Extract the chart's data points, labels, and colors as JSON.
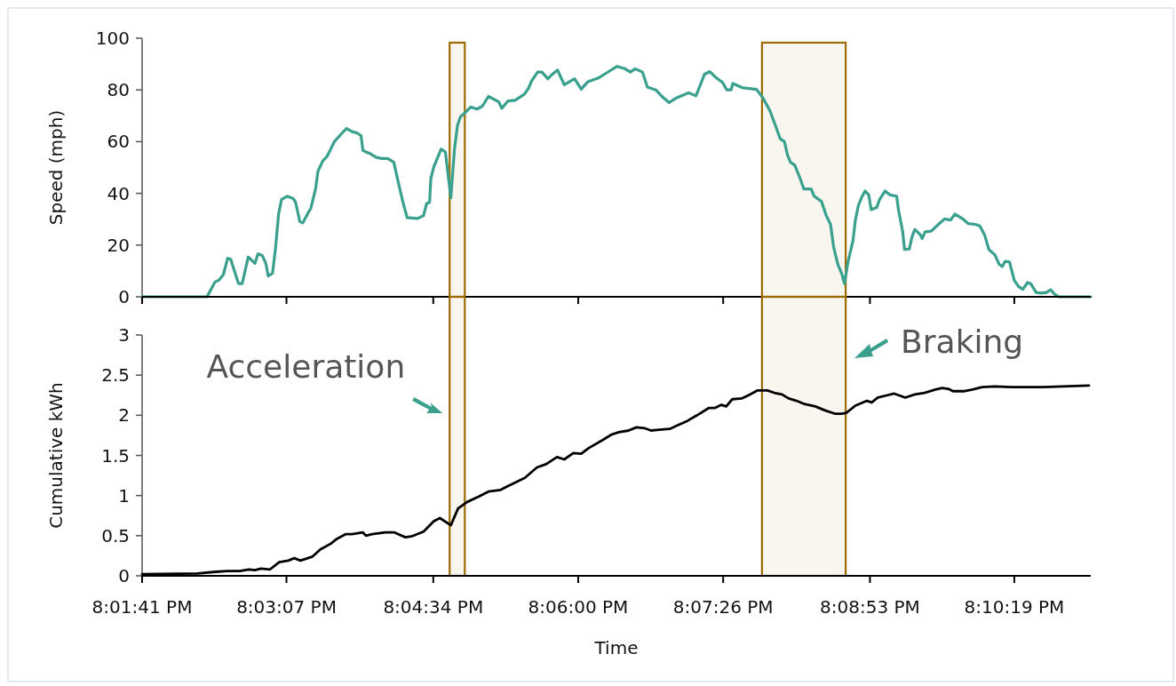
{
  "chart_data": [
    {
      "type": "line",
      "ylabel": "Speed (mph)",
      "xlim": [
        20.0281,
        20.1845
      ],
      "xticks": [
        {
          "value": 20.0281,
          "label": null
        },
        {
          "value": 20.0519,
          "label": null
        },
        {
          "value": 20.0761,
          "label": null
        },
        {
          "value": 20.1,
          "label": null
        },
        {
          "value": 20.1239,
          "label": null
        },
        {
          "value": 20.1481,
          "label": null
        },
        {
          "value": 20.1719,
          "label": null
        }
      ],
      "ylim": [
        0,
        100
      ],
      "yticks": [
        0,
        20,
        40,
        60,
        80,
        100
      ],
      "tick_labels": "y",
      "grid": false,
      "marker": "none",
      "line_style": "solid",
      "x": [
        20.0281,
        20.0388,
        20.0401,
        20.0408,
        20.0415,
        20.0422,
        20.0427,
        20.044,
        20.0446,
        20.0456,
        20.0467,
        20.0472,
        20.0479,
        20.0485,
        20.0489,
        20.0496,
        20.0501,
        20.0506,
        20.0511,
        20.052,
        20.053,
        20.0534,
        20.0541,
        20.0546,
        20.0555,
        20.0559,
        20.0567,
        20.0571,
        20.0579,
        20.0586,
        20.0598,
        20.0611,
        20.0618,
        20.0628,
        20.0635,
        20.0642,
        20.0645,
        20.0652,
        20.0657,
        20.0667,
        20.0676,
        20.0686,
        20.0696,
        20.0703,
        20.0711,
        20.0718,
        20.0735,
        20.0745,
        20.075,
        20.0755,
        20.0757,
        20.0762,
        20.0774,
        20.0781,
        20.079,
        20.0796,
        20.0801,
        20.0806,
        20.0813,
        20.0823,
        20.0833,
        20.0842,
        20.0852,
        20.0869,
        20.0874,
        20.0884,
        20.0896,
        20.0911,
        20.0918,
        20.0923,
        20.0933,
        20.094,
        20.095,
        20.0957,
        20.0966,
        20.0977,
        20.0994,
        20.1005,
        20.1016,
        20.1033,
        20.1047,
        20.1064,
        20.1077,
        20.1086,
        20.1094,
        20.1106,
        20.1114,
        20.1128,
        20.1138,
        20.115,
        20.1162,
        20.1182,
        20.1194,
        20.1201,
        20.1208,
        20.1217,
        20.1228,
        20.1238,
        20.1245,
        20.1252,
        20.1255,
        20.127,
        20.1294,
        20.1304,
        20.1316,
        20.1326,
        20.1333,
        20.134,
        20.1345,
        20.135,
        20.1357,
        20.1365,
        20.1372,
        20.1384,
        20.1389,
        20.1401,
        20.1409,
        20.1416,
        20.1421,
        20.1428,
        20.1435,
        20.1439,
        20.1445,
        20.1453,
        20.1457,
        20.1462,
        20.1467,
        20.1473,
        20.1479,
        20.1483,
        20.1492,
        20.1497,
        20.1506,
        20.1514,
        20.1525,
        20.1528,
        20.1535,
        20.1538,
        20.1546,
        20.155,
        20.1555,
        20.1564,
        20.1567,
        20.1572,
        20.1582,
        20.1594,
        20.1604,
        20.1614,
        20.1621,
        20.1633,
        20.1643,
        20.1655,
        20.1662,
        20.167,
        20.1677,
        20.1687,
        20.1694,
        20.1699,
        20.1704,
        20.1711,
        20.1719,
        20.1726,
        20.1733,
        20.1741,
        20.1746,
        20.1755,
        20.1763,
        20.1772,
        20.1779,
        20.1785,
        20.1792,
        20.1845
      ],
      "series": [
        {
          "color": "#3aa08e",
          "values": [
            0,
            0,
            5.7,
            6.5,
            8.6,
            14.9,
            14.5,
            5.1,
            5.1,
            15.4,
            12.9,
            16.6,
            16,
            12.9,
            8,
            9.1,
            18.9,
            32,
            37.7,
            38.9,
            38,
            36.6,
            29.1,
            28.6,
            32.6,
            34.1,
            41.7,
            48.6,
            52.6,
            54.3,
            60,
            63.4,
            65.1,
            63.8,
            63.4,
            62.3,
            56.6,
            55.8,
            55.4,
            53.9,
            53.5,
            53.5,
            52,
            44.6,
            36.6,
            30.6,
            30.3,
            31.4,
            36,
            36.6,
            45.7,
            50.3,
            57.1,
            56,
            38.3,
            57.1,
            66.3,
            69.7,
            71.1,
            73.4,
            72.6,
            73.7,
            77.5,
            75.4,
            72.9,
            75.7,
            76,
            78.3,
            80.6,
            83.4,
            86.9,
            86.9,
            84.3,
            86,
            87.7,
            82,
            84.3,
            80.3,
            83.2,
            84.6,
            86.6,
            89.1,
            88.2,
            86.9,
            88.2,
            86.9,
            81.1,
            80,
            77.5,
            75.1,
            76.9,
            78.9,
            77.7,
            81.7,
            86,
            87.1,
            84.6,
            82.9,
            80,
            80,
            82.5,
            80.9,
            80.2,
            77.1,
            72,
            65.7,
            61.1,
            60,
            54.9,
            52,
            50.9,
            46.3,
            41.7,
            41.7,
            38.9,
            36.9,
            31.4,
            28,
            19.4,
            12.6,
            8.6,
            5.1,
            13.7,
            21.7,
            29.7,
            35.4,
            38.3,
            40.9,
            39.4,
            33.7,
            34.5,
            37.7,
            40.9,
            39.4,
            38.9,
            33.7,
            25.1,
            18.3,
            18.5,
            22.9,
            26.1,
            24,
            22.5,
            25.1,
            25.4,
            28,
            30.1,
            29.7,
            32,
            30.3,
            28.3,
            28,
            27.4,
            24,
            18.3,
            16.2,
            12.6,
            11.7,
            13.7,
            13.5,
            6.3,
            4,
            2.9,
            5.5,
            5.1,
            1.7,
            1.4,
            1.7,
            2.7,
            1.1,
            0,
            0
          ]
        }
      ],
      "bands": [
        {
          "axis": "x",
          "from": 20.0788,
          "to": 20.0813,
          "color": "#9c6b00"
        },
        {
          "axis": "x",
          "from": 20.1303,
          "to": 20.1441,
          "color": "#9c6b00"
        }
      ]
    },
    {
      "type": "line",
      "xlabel": "Time",
      "ylabel": "Cumulative kWh",
      "xlim": [
        20.0281,
        20.1845
      ],
      "xticks": [
        {
          "value": 20.0281,
          "label": "8:01:41 PM"
        },
        {
          "value": 20.0519,
          "label": "8:03:07 PM"
        },
        {
          "value": 20.0761,
          "label": "8:04:34 PM"
        },
        {
          "value": 20.1,
          "label": "8:06:00 PM"
        },
        {
          "value": 20.1239,
          "label": "8:07:26 PM"
        },
        {
          "value": 20.1481,
          "label": "8:08:53 PM"
        },
        {
          "value": 20.1719,
          "label": "8:10:19 PM"
        }
      ],
      "ylim": [
        0,
        3
      ],
      "yticks": [
        0,
        0.5,
        1,
        1.5,
        2,
        2.5,
        3
      ],
      "grid": false,
      "marker": "none",
      "line_style": "solid",
      "x": [
        20.0281,
        20.0372,
        20.0402,
        20.0422,
        20.0442,
        20.0457,
        20.0467,
        20.0477,
        20.0492,
        20.0507,
        20.0522,
        20.0532,
        20.0542,
        20.0562,
        20.0575,
        20.0592,
        20.0602,
        20.0617,
        20.0627,
        20.0645,
        20.065,
        20.066,
        20.0682,
        20.0697,
        20.0715,
        20.0725,
        20.0745,
        20.0762,
        20.0772,
        20.079,
        20.0802,
        20.0817,
        20.0837,
        20.0852,
        20.0872,
        20.0882,
        20.0912,
        20.0932,
        20.0947,
        20.0965,
        20.0977,
        20.0992,
        20.1005,
        20.1017,
        20.1042,
        20.1055,
        20.1067,
        20.1083,
        20.1096,
        20.1109,
        20.112,
        20.1133,
        20.1151,
        20.1165,
        20.118,
        20.1196,
        20.1215,
        20.1225,
        20.1236,
        20.1244,
        20.1254,
        20.127,
        20.1281,
        20.1296,
        20.1312,
        20.1323,
        20.1336,
        20.1347,
        20.136,
        20.1373,
        20.1391,
        20.1407,
        20.1423,
        20.1434,
        20.1442,
        20.1457,
        20.1476,
        20.1484,
        20.1494,
        20.151,
        20.1521,
        20.1539,
        20.1555,
        20.1571,
        20.1589,
        20.16,
        20.161,
        20.1618,
        20.1637,
        20.165,
        20.1666,
        20.1687,
        20.1713,
        20.1766,
        20.1842
      ],
      "series": [
        {
          "color": "#000000",
          "values": [
            0.02,
            0.03,
            0.05,
            0.06,
            0.06,
            0.08,
            0.07,
            0.09,
            0.08,
            0.17,
            0.19,
            0.22,
            0.19,
            0.24,
            0.33,
            0.4,
            0.46,
            0.52,
            0.52,
            0.54,
            0.5,
            0.52,
            0.54,
            0.54,
            0.48,
            0.49,
            0.55,
            0.68,
            0.72,
            0.63,
            0.84,
            0.92,
            0.99,
            1.05,
            1.07,
            1.11,
            1.22,
            1.35,
            1.39,
            1.48,
            1.45,
            1.53,
            1.52,
            1.59,
            1.7,
            1.76,
            1.79,
            1.81,
            1.85,
            1.84,
            1.81,
            1.82,
            1.83,
            1.88,
            1.93,
            2,
            2.09,
            2.09,
            2.13,
            2.11,
            2.2,
            2.21,
            2.25,
            2.31,
            2.31,
            2.28,
            2.26,
            2.21,
            2.18,
            2.14,
            2.11,
            2.06,
            2.02,
            2.02,
            2.03,
            2.12,
            2.18,
            2.16,
            2.22,
            2.25,
            2.27,
            2.22,
            2.26,
            2.28,
            2.32,
            2.34,
            2.33,
            2.3,
            2.3,
            2.32,
            2.35,
            2.36,
            2.35,
            2.35,
            2.37
          ]
        }
      ],
      "bands": [
        {
          "axis": "x",
          "from": 20.0788,
          "to": 20.0813,
          "color": "#9c6b00",
          "label": "Acceleration"
        },
        {
          "axis": "x",
          "from": 20.1303,
          "to": 20.1441,
          "color": "#9c6b00",
          "label": "Braking"
        }
      ]
    }
  ]
}
